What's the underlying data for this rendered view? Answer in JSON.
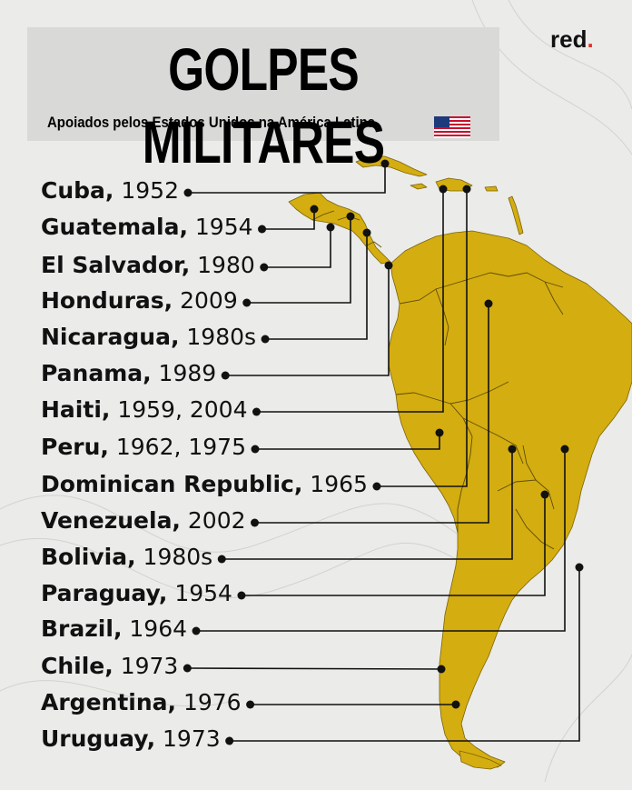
{
  "brand": "red",
  "title": "GOLPES MILITARES",
  "subtitle": "Apoiados pelos Estados Unidos na América Latina",
  "colors": {
    "land": "#d4ad10",
    "background": "#ebebe9",
    "title_box": "#d9d9d7",
    "line": "#111111",
    "brand_dot": "#e0352b"
  },
  "flag": "usa-flag-icon",
  "events": [
    {
      "country": "Cuba",
      "years": "1952"
    },
    {
      "country": "Guatemala",
      "years": "1954"
    },
    {
      "country": "El Salvador",
      "years": "1980"
    },
    {
      "country": "Honduras",
      "years": "2009"
    },
    {
      "country": "Nicaragua",
      "years": "1980s"
    },
    {
      "country": "Panama",
      "years": "1989"
    },
    {
      "country": "Haiti",
      "years": "1959, 2004"
    },
    {
      "country": "Peru",
      "years": "1962, 1975"
    },
    {
      "country": "Dominican Republic",
      "years": "1965"
    },
    {
      "country": "Venezuela",
      "years": "2002"
    },
    {
      "country": "Bolivia",
      "years": "1980s"
    },
    {
      "country": "Paraguay",
      "years": "1954"
    },
    {
      "country": "Brazil",
      "years": "1964"
    },
    {
      "country": "Chile",
      "years": "1973"
    },
    {
      "country": "Argentina",
      "years": "1976"
    },
    {
      "country": "Uruguay",
      "years": "1973"
    }
  ]
}
